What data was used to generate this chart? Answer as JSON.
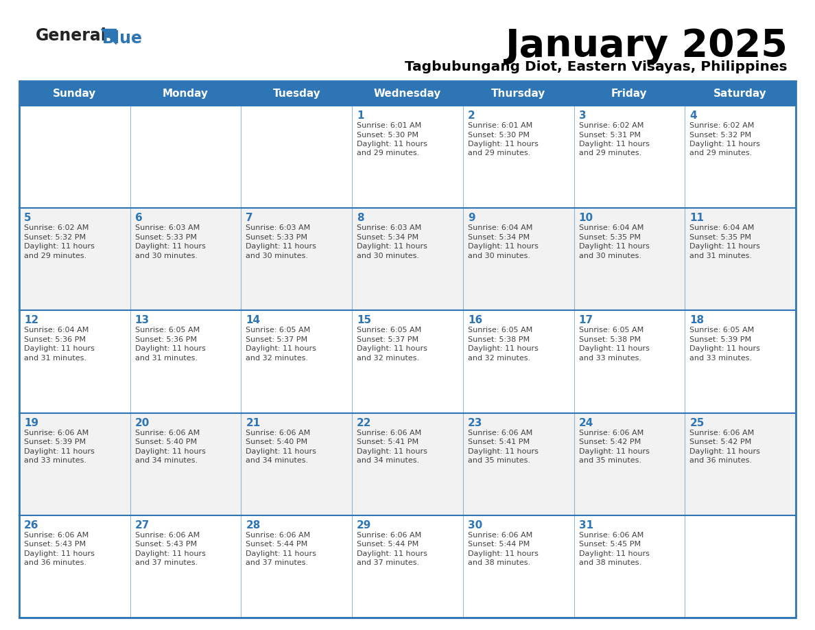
{
  "title": "January 2025",
  "subtitle": "Tagbubungang Diot, Eastern Visayas, Philippines",
  "days_of_week": [
    "Sunday",
    "Monday",
    "Tuesday",
    "Wednesday",
    "Thursday",
    "Friday",
    "Saturday"
  ],
  "header_bg": "#2E75B6",
  "header_text_color": "#FFFFFF",
  "row_bg_odd": "#FFFFFF",
  "row_bg_even": "#F2F2F2",
  "border_color": "#2E75B6",
  "day_number_color": "#2E75B6",
  "text_color": "#404040",
  "logo_general_color": "#222222",
  "logo_blue_color": "#2E75B6",
  "calendar_data": [
    [
      {
        "day": "",
        "sunrise": "",
        "sunset": "",
        "daylight_h": "",
        "daylight_m": ""
      },
      {
        "day": "",
        "sunrise": "",
        "sunset": "",
        "daylight_h": "",
        "daylight_m": ""
      },
      {
        "day": "",
        "sunrise": "",
        "sunset": "",
        "daylight_h": "",
        "daylight_m": ""
      },
      {
        "day": "1",
        "sunrise": "6:01 AM",
        "sunset": "5:30 PM",
        "daylight_h": "11",
        "daylight_m": "29"
      },
      {
        "day": "2",
        "sunrise": "6:01 AM",
        "sunset": "5:30 PM",
        "daylight_h": "11",
        "daylight_m": "29"
      },
      {
        "day": "3",
        "sunrise": "6:02 AM",
        "sunset": "5:31 PM",
        "daylight_h": "11",
        "daylight_m": "29"
      },
      {
        "day": "4",
        "sunrise": "6:02 AM",
        "sunset": "5:32 PM",
        "daylight_h": "11",
        "daylight_m": "29"
      }
    ],
    [
      {
        "day": "5",
        "sunrise": "6:02 AM",
        "sunset": "5:32 PM",
        "daylight_h": "11",
        "daylight_m": "29"
      },
      {
        "day": "6",
        "sunrise": "6:03 AM",
        "sunset": "5:33 PM",
        "daylight_h": "11",
        "daylight_m": "30"
      },
      {
        "day": "7",
        "sunrise": "6:03 AM",
        "sunset": "5:33 PM",
        "daylight_h": "11",
        "daylight_m": "30"
      },
      {
        "day": "8",
        "sunrise": "6:03 AM",
        "sunset": "5:34 PM",
        "daylight_h": "11",
        "daylight_m": "30"
      },
      {
        "day": "9",
        "sunrise": "6:04 AM",
        "sunset": "5:34 PM",
        "daylight_h": "11",
        "daylight_m": "30"
      },
      {
        "day": "10",
        "sunrise": "6:04 AM",
        "sunset": "5:35 PM",
        "daylight_h": "11",
        "daylight_m": "30"
      },
      {
        "day": "11",
        "sunrise": "6:04 AM",
        "sunset": "5:35 PM",
        "daylight_h": "11",
        "daylight_m": "31"
      }
    ],
    [
      {
        "day": "12",
        "sunrise": "6:04 AM",
        "sunset": "5:36 PM",
        "daylight_h": "11",
        "daylight_m": "31"
      },
      {
        "day": "13",
        "sunrise": "6:05 AM",
        "sunset": "5:36 PM",
        "daylight_h": "11",
        "daylight_m": "31"
      },
      {
        "day": "14",
        "sunrise": "6:05 AM",
        "sunset": "5:37 PM",
        "daylight_h": "11",
        "daylight_m": "32"
      },
      {
        "day": "15",
        "sunrise": "6:05 AM",
        "sunset": "5:37 PM",
        "daylight_h": "11",
        "daylight_m": "32"
      },
      {
        "day": "16",
        "sunrise": "6:05 AM",
        "sunset": "5:38 PM",
        "daylight_h": "11",
        "daylight_m": "32"
      },
      {
        "day": "17",
        "sunrise": "6:05 AM",
        "sunset": "5:38 PM",
        "daylight_h": "11",
        "daylight_m": "33"
      },
      {
        "day": "18",
        "sunrise": "6:05 AM",
        "sunset": "5:39 PM",
        "daylight_h": "11",
        "daylight_m": "33"
      }
    ],
    [
      {
        "day": "19",
        "sunrise": "6:06 AM",
        "sunset": "5:39 PM",
        "daylight_h": "11",
        "daylight_m": "33"
      },
      {
        "day": "20",
        "sunrise": "6:06 AM",
        "sunset": "5:40 PM",
        "daylight_h": "11",
        "daylight_m": "34"
      },
      {
        "day": "21",
        "sunrise": "6:06 AM",
        "sunset": "5:40 PM",
        "daylight_h": "11",
        "daylight_m": "34"
      },
      {
        "day": "22",
        "sunrise": "6:06 AM",
        "sunset": "5:41 PM",
        "daylight_h": "11",
        "daylight_m": "34"
      },
      {
        "day": "23",
        "sunrise": "6:06 AM",
        "sunset": "5:41 PM",
        "daylight_h": "11",
        "daylight_m": "35"
      },
      {
        "day": "24",
        "sunrise": "6:06 AM",
        "sunset": "5:42 PM",
        "daylight_h": "11",
        "daylight_m": "35"
      },
      {
        "day": "25",
        "sunrise": "6:06 AM",
        "sunset": "5:42 PM",
        "daylight_h": "11",
        "daylight_m": "36"
      }
    ],
    [
      {
        "day": "26",
        "sunrise": "6:06 AM",
        "sunset": "5:43 PM",
        "daylight_h": "11",
        "daylight_m": "36"
      },
      {
        "day": "27",
        "sunrise": "6:06 AM",
        "sunset": "5:43 PM",
        "daylight_h": "11",
        "daylight_m": "37"
      },
      {
        "day": "28",
        "sunrise": "6:06 AM",
        "sunset": "5:44 PM",
        "daylight_h": "11",
        "daylight_m": "37"
      },
      {
        "day": "29",
        "sunrise": "6:06 AM",
        "sunset": "5:44 PM",
        "daylight_h": "11",
        "daylight_m": "37"
      },
      {
        "day": "30",
        "sunrise": "6:06 AM",
        "sunset": "5:44 PM",
        "daylight_h": "11",
        "daylight_m": "38"
      },
      {
        "day": "31",
        "sunrise": "6:06 AM",
        "sunset": "5:45 PM",
        "daylight_h": "11",
        "daylight_m": "38"
      },
      {
        "day": "",
        "sunrise": "",
        "sunset": "",
        "daylight_h": "",
        "daylight_m": ""
      }
    ]
  ]
}
